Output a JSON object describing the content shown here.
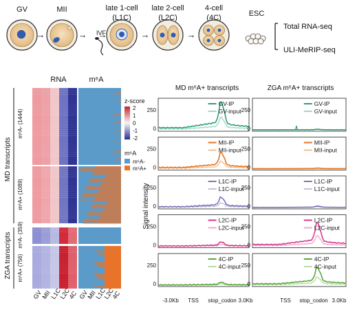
{
  "stages": [
    {
      "label": "GV",
      "sub": ""
    },
    {
      "label": "MII",
      "sub": ""
    },
    {
      "label": "late 1-cell",
      "sub": "(L1C)"
    },
    {
      "label": "late 2-cell",
      "sub": "(L2C)"
    },
    {
      "label": "4-cell",
      "sub": "(4C)"
    },
    {
      "label": "ESC",
      "sub": ""
    }
  ],
  "ivf_label": "IVF",
  "assays": [
    "Total RNA-seq",
    "ULI-MeRIP-seq"
  ],
  "heatmap": {
    "rna_title": "RNA",
    "m6a_title": "m⁶A",
    "rna_columns": [
      "GV",
      "MII",
      "L1C",
      "L2C",
      "4C"
    ],
    "m6a_columns": [
      "GV",
      "MII",
      "L1C",
      "L2C",
      "4C"
    ],
    "group_labels": [
      "MD transcripts",
      "ZGA transcripts"
    ],
    "row_blocks": [
      {
        "label": "m⁶A- (1444)",
        "group": "MD transcripts"
      },
      {
        "label": "m⁶A+ (1089)",
        "group": "MD transcripts"
      },
      {
        "label": "m⁶A- (359)",
        "group": "ZGA transcripts"
      },
      {
        "label": "m⁶A+ (756)",
        "group": "ZGA transcripts"
      }
    ],
    "zscore_title": "z-score",
    "zscore_ticks": [
      "2",
      "1",
      "0",
      "-1",
      "-2"
    ],
    "m6a_legend_title": "m⁶A",
    "m6a_legend": [
      {
        "label": "m⁶A-",
        "color": "#5b9bc9"
      },
      {
        "label": "m⁶A+",
        "color": "#e8732a"
      }
    ],
    "colors": {
      "high": "#c8202e",
      "mid": "#f5f5f5",
      "low": "#2b2d8f"
    }
  },
  "profiles": {
    "col_titles": [
      "MD m⁶A+ transcripts",
      "ZGA m⁶A+ transcripts"
    ],
    "ylabel": "Signal intensity",
    "yticks": [
      "250",
      "0"
    ],
    "xticks": [
      "-3.0Kb",
      "TSS",
      "stop_codon",
      "3.0Kb"
    ],
    "rows": [
      {
        "ip": "GV-IP",
        "input": "GV-input",
        "color": "#2a9d78",
        "light": "#9fd8c2"
      },
      {
        "ip": "MII-IP",
        "input": "MII-input",
        "color": "#e2741f",
        "light": "#f3bf8c"
      },
      {
        "ip": "L1C-IP",
        "input": "L1C-input",
        "color": "#7a74b8",
        "light": "#c2bfe0"
      },
      {
        "ip": "L2C-IP",
        "input": "L2C-input",
        "color": "#d63a8c",
        "light": "#f0a8cc"
      },
      {
        "ip": "4C-IP",
        "input": "4C-input",
        "color": "#5aa83c",
        "light": "#b5dca0"
      }
    ],
    "peak_heights": {
      "md": [
        0.95,
        0.55,
        0.35,
        0.15,
        0.1
      ],
      "zga": [
        0.02,
        0.02,
        0.05,
        0.8,
        0.6
      ]
    }
  }
}
